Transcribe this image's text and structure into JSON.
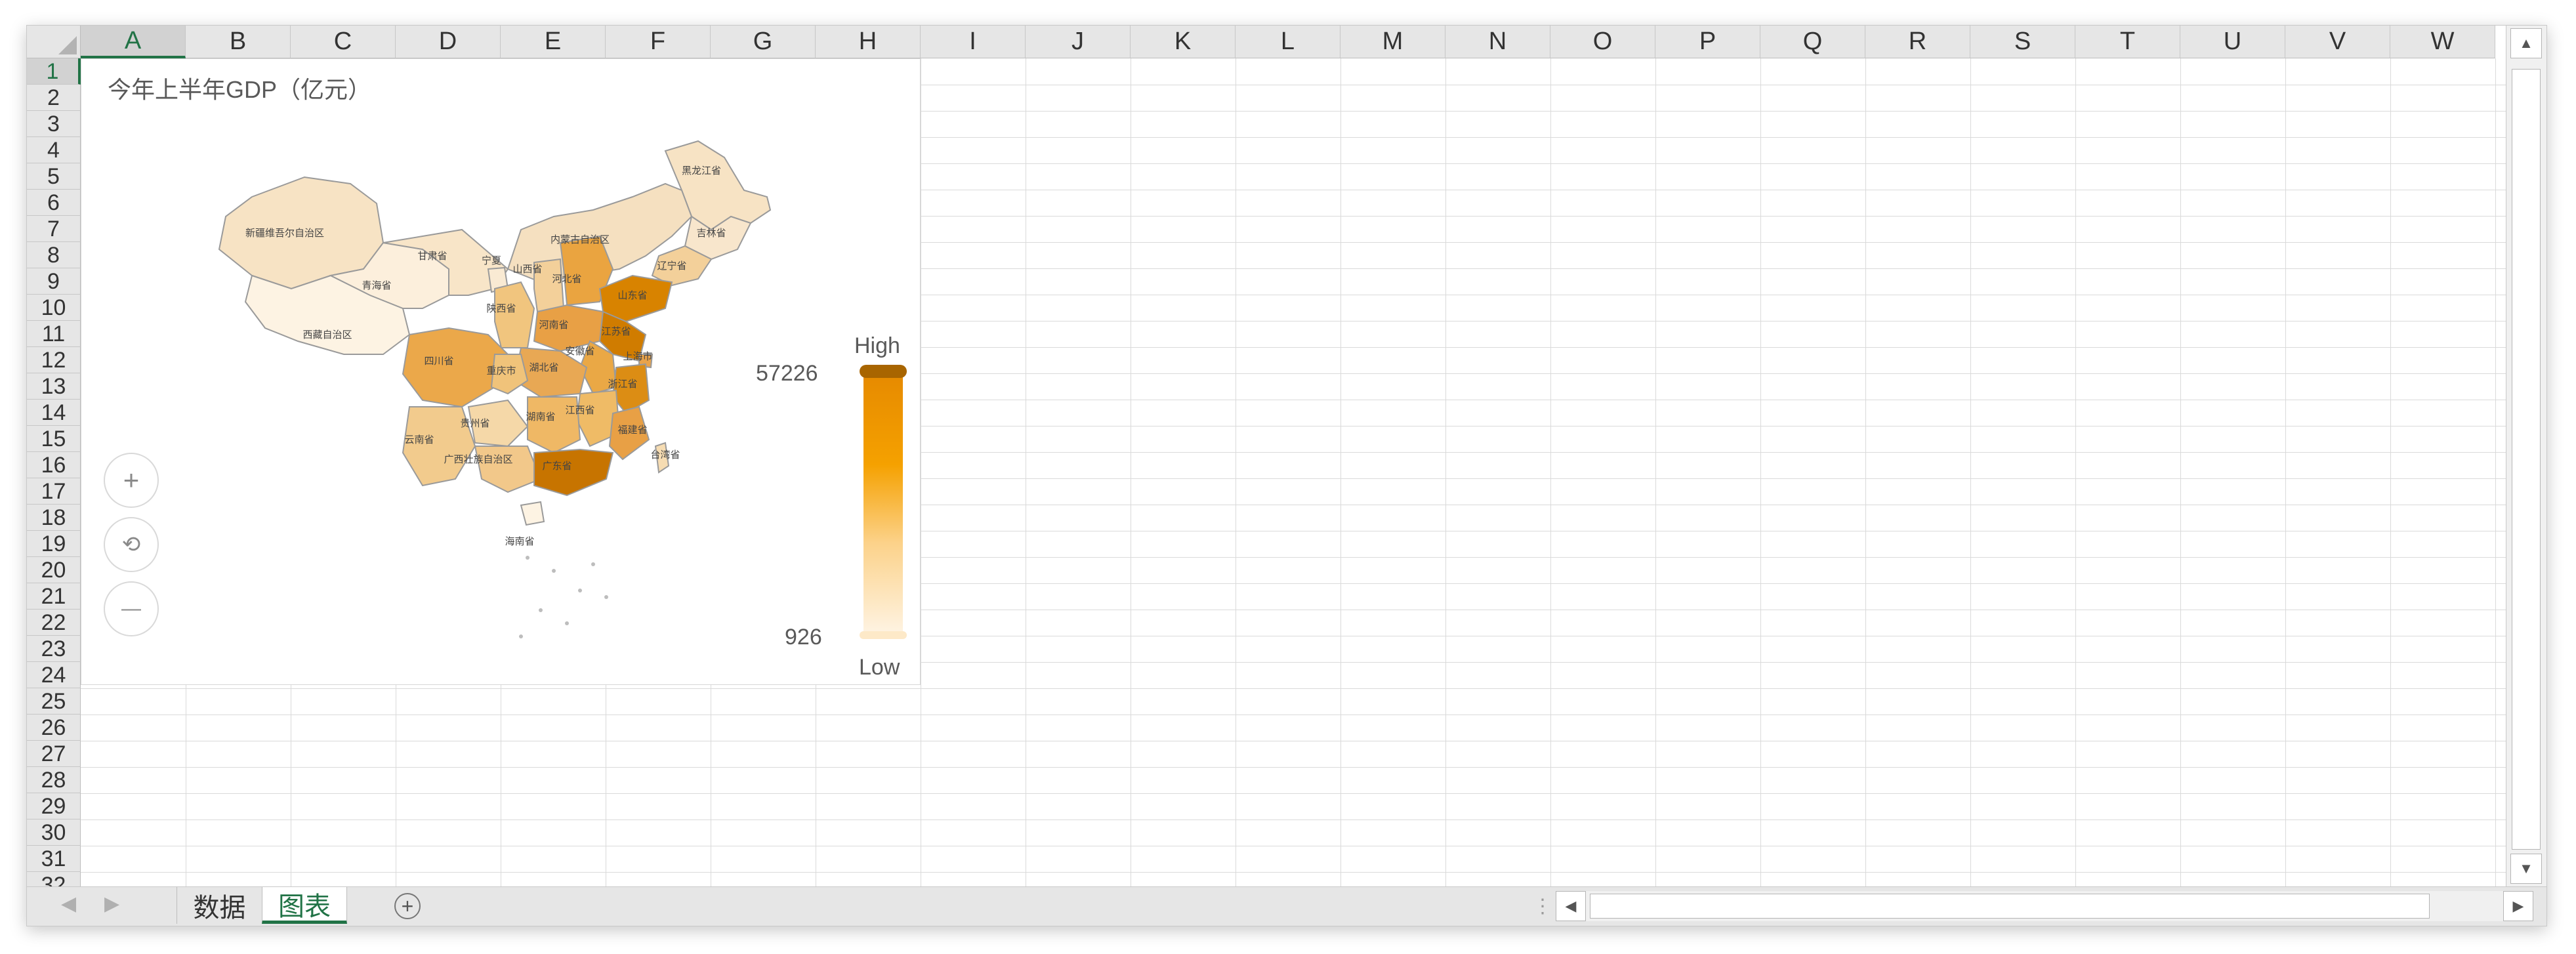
{
  "columns": [
    "A",
    "B",
    "C",
    "D",
    "E",
    "F",
    "G",
    "H",
    "I",
    "J",
    "K",
    "L",
    "M",
    "N",
    "O",
    "P",
    "Q",
    "R",
    "S",
    "T",
    "U",
    "V",
    "W"
  ],
  "rows": [
    "1",
    "2",
    "3",
    "4",
    "5",
    "6",
    "7",
    "8",
    "9",
    "10",
    "11",
    "12",
    "13",
    "14",
    "15",
    "16",
    "17",
    "18",
    "19",
    "20",
    "21",
    "22",
    "23",
    "24",
    "25",
    "26",
    "27",
    "28",
    "29",
    "30",
    "31",
    "32"
  ],
  "chart": {
    "title": "今年上半年GDP（亿元）",
    "legend_high": "High",
    "legend_low": "Low",
    "max_value": "57226",
    "min_value": "926",
    "controls": {
      "zoom_in": "+",
      "reset": "⟲",
      "zoom_out": "—"
    },
    "color_high": "#e68a00",
    "color_low": "#fef4e4",
    "regions": [
      "黑龙江省",
      "内蒙古自治区",
      "吉林省",
      "辽宁省",
      "新疆维吾尔自治区",
      "甘肃省",
      "宁夏",
      "山西省",
      "河北省",
      "山东省",
      "青海省",
      "陕西省",
      "河南省",
      "江苏省",
      "西藏自治区",
      "四川省",
      "湖北省",
      "安徽省",
      "上海市",
      "重庆市",
      "浙江省",
      "贵州省",
      "湖南省",
      "江西省",
      "福建省",
      "云南省",
      "广西壮族自治区",
      "广东省",
      "台湾省",
      "海南省"
    ]
  },
  "scroll": {
    "up": "▲",
    "down": "▼",
    "left": "◀",
    "right": "▶"
  },
  "sheets": {
    "nav_prev": "◀",
    "nav_next": "▶",
    "tabs": [
      "数据",
      "图表"
    ],
    "active": "图表",
    "add": "+"
  },
  "splitter": "⋮"
}
